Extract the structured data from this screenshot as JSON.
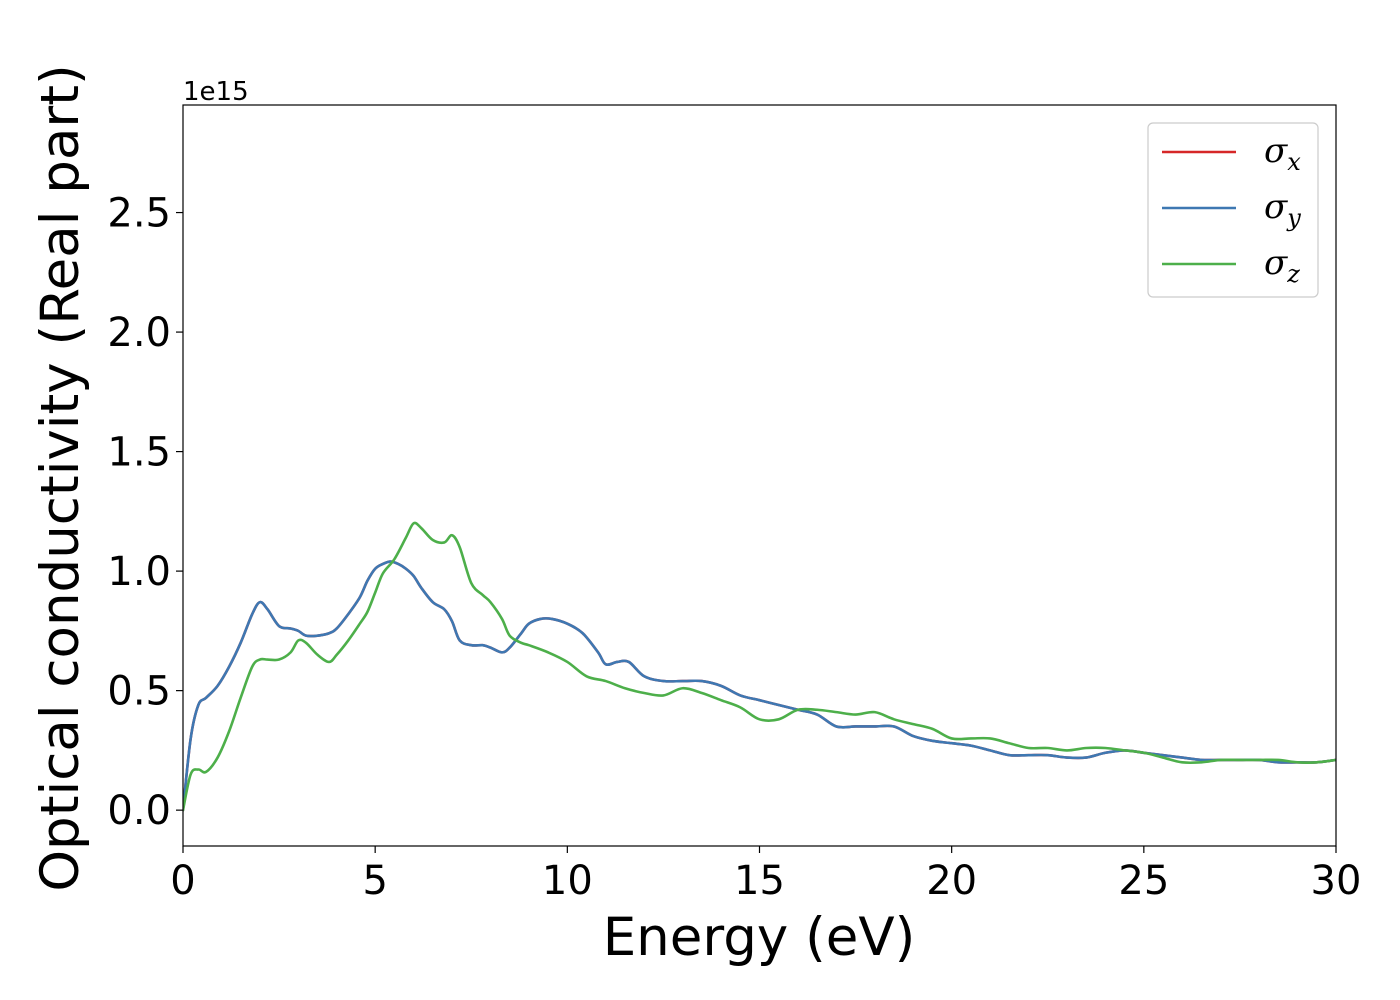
{
  "chart_data": {
    "type": "line",
    "title": "",
    "xlabel": "Energy (eV)",
    "ylabel": "Optical conductivity (Real part)",
    "y_offset_label": "1e15",
    "y_scale": 1000000000000000.0,
    "xlim": [
      0,
      30
    ],
    "ylim": [
      -0.15,
      2.95
    ],
    "x_ticks": [
      0,
      5,
      10,
      15,
      20,
      25,
      30
    ],
    "x_tick_labels": [
      "0",
      "5",
      "10",
      "15",
      "20",
      "25",
      "30"
    ],
    "y_ticks": [
      0.0,
      0.5,
      1.0,
      1.5,
      2.0,
      2.5
    ],
    "y_tick_labels": [
      "0.0",
      "0.5",
      "1.0",
      "1.5",
      "2.0",
      "2.5"
    ],
    "grid": false,
    "legend_position": "top-right",
    "series": [
      {
        "name": "σ_x",
        "legend_base": "σ",
        "legend_sub": "x",
        "color": "#d62728",
        "x": [
          0,
          0.2,
          0.4,
          0.6,
          0.9,
          1.2,
          1.5,
          1.8,
          2.0,
          2.2,
          2.5,
          2.8,
          3.0,
          3.2,
          3.5,
          3.8,
          4.0,
          4.3,
          4.6,
          4.8,
          5.0,
          5.2,
          5.4,
          5.6,
          5.8,
          6.0,
          6.2,
          6.5,
          6.8,
          7.0,
          7.2,
          7.5,
          7.8,
          8.0,
          8.3,
          8.5,
          8.8,
          9.0,
          9.3,
          9.6,
          10.0,
          10.4,
          10.8,
          11.0,
          11.3,
          11.6,
          12.0,
          12.5,
          13.0,
          13.5,
          14.0,
          14.5,
          15.0,
          15.5,
          16.0,
          16.5,
          17.0,
          17.5,
          18.0,
          18.5,
          19.0,
          19.5,
          20.0,
          20.5,
          21.0,
          21.5,
          22.0,
          22.5,
          23.0,
          23.5,
          24.0,
          24.5,
          25.0,
          25.5,
          26.0,
          26.5,
          27.0,
          27.5,
          28.0,
          28.5,
          29.0,
          29.5,
          30.0
        ],
        "y": [
          0.0,
          0.3,
          0.44,
          0.47,
          0.52,
          0.6,
          0.7,
          0.82,
          0.87,
          0.84,
          0.77,
          0.76,
          0.75,
          0.73,
          0.73,
          0.74,
          0.76,
          0.82,
          0.89,
          0.96,
          1.01,
          1.03,
          1.04,
          1.03,
          1.01,
          0.98,
          0.93,
          0.87,
          0.84,
          0.79,
          0.71,
          0.69,
          0.69,
          0.68,
          0.66,
          0.68,
          0.74,
          0.78,
          0.8,
          0.8,
          0.78,
          0.74,
          0.66,
          0.61,
          0.62,
          0.62,
          0.56,
          0.54,
          0.54,
          0.54,
          0.52,
          0.48,
          0.46,
          0.44,
          0.42,
          0.4,
          0.35,
          0.35,
          0.35,
          0.35,
          0.31,
          0.29,
          0.28,
          0.27,
          0.25,
          0.23,
          0.23,
          0.23,
          0.22,
          0.22,
          0.24,
          0.25,
          0.24,
          0.23,
          0.22,
          0.21,
          0.21,
          0.21,
          0.21,
          0.2,
          0.2,
          0.2,
          0.21
        ]
      },
      {
        "name": "σ_y",
        "legend_base": "σ",
        "legend_sub": "y",
        "color": "#3e78b2",
        "x": [
          0,
          0.2,
          0.4,
          0.6,
          0.9,
          1.2,
          1.5,
          1.8,
          2.0,
          2.2,
          2.5,
          2.8,
          3.0,
          3.2,
          3.5,
          3.8,
          4.0,
          4.3,
          4.6,
          4.8,
          5.0,
          5.2,
          5.4,
          5.6,
          5.8,
          6.0,
          6.2,
          6.5,
          6.8,
          7.0,
          7.2,
          7.5,
          7.8,
          8.0,
          8.3,
          8.5,
          8.8,
          9.0,
          9.3,
          9.6,
          10.0,
          10.4,
          10.8,
          11.0,
          11.3,
          11.6,
          12.0,
          12.5,
          13.0,
          13.5,
          14.0,
          14.5,
          15.0,
          15.5,
          16.0,
          16.5,
          17.0,
          17.5,
          18.0,
          18.5,
          19.0,
          19.5,
          20.0,
          20.5,
          21.0,
          21.5,
          22.0,
          22.5,
          23.0,
          23.5,
          24.0,
          24.5,
          25.0,
          25.5,
          26.0,
          26.5,
          27.0,
          27.5,
          28.0,
          28.5,
          29.0,
          29.5,
          30.0
        ],
        "y": [
          0.0,
          0.3,
          0.44,
          0.47,
          0.52,
          0.6,
          0.7,
          0.82,
          0.87,
          0.84,
          0.77,
          0.76,
          0.75,
          0.73,
          0.73,
          0.74,
          0.76,
          0.82,
          0.89,
          0.96,
          1.01,
          1.03,
          1.04,
          1.03,
          1.01,
          0.98,
          0.93,
          0.87,
          0.84,
          0.79,
          0.71,
          0.69,
          0.69,
          0.68,
          0.66,
          0.68,
          0.74,
          0.78,
          0.8,
          0.8,
          0.78,
          0.74,
          0.66,
          0.61,
          0.62,
          0.62,
          0.56,
          0.54,
          0.54,
          0.54,
          0.52,
          0.48,
          0.46,
          0.44,
          0.42,
          0.4,
          0.35,
          0.35,
          0.35,
          0.35,
          0.31,
          0.29,
          0.28,
          0.27,
          0.25,
          0.23,
          0.23,
          0.23,
          0.22,
          0.22,
          0.24,
          0.25,
          0.24,
          0.23,
          0.22,
          0.21,
          0.21,
          0.21,
          0.21,
          0.2,
          0.2,
          0.2,
          0.21
        ]
      },
      {
        "name": "σ_z",
        "legend_base": "σ",
        "legend_sub": "z",
        "color": "#4daf4a",
        "x": [
          0,
          0.2,
          0.4,
          0.6,
          0.9,
          1.2,
          1.5,
          1.8,
          2.0,
          2.2,
          2.5,
          2.8,
          3.0,
          3.2,
          3.5,
          3.8,
          4.0,
          4.3,
          4.6,
          4.8,
          5.0,
          5.2,
          5.5,
          5.8,
          6.0,
          6.2,
          6.5,
          6.8,
          7.0,
          7.2,
          7.5,
          7.8,
          8.0,
          8.3,
          8.5,
          8.8,
          9.0,
          9.5,
          10.0,
          10.5,
          11.0,
          11.5,
          12.0,
          12.5,
          13.0,
          13.5,
          14.0,
          14.5,
          15.0,
          15.5,
          16.0,
          16.5,
          17.0,
          17.5,
          18.0,
          18.5,
          19.0,
          19.5,
          20.0,
          20.5,
          21.0,
          21.5,
          22.0,
          22.5,
          23.0,
          23.5,
          24.0,
          24.5,
          25.0,
          25.5,
          26.0,
          26.5,
          27.0,
          27.5,
          28.0,
          28.5,
          29.0,
          29.5,
          30.0
        ],
        "y": [
          0.0,
          0.15,
          0.17,
          0.16,
          0.22,
          0.33,
          0.47,
          0.6,
          0.63,
          0.63,
          0.63,
          0.66,
          0.71,
          0.7,
          0.65,
          0.62,
          0.65,
          0.71,
          0.78,
          0.83,
          0.91,
          0.99,
          1.05,
          1.14,
          1.2,
          1.18,
          1.13,
          1.12,
          1.15,
          1.1,
          0.95,
          0.9,
          0.87,
          0.8,
          0.73,
          0.7,
          0.69,
          0.66,
          0.62,
          0.56,
          0.54,
          0.51,
          0.49,
          0.48,
          0.51,
          0.49,
          0.46,
          0.43,
          0.38,
          0.38,
          0.42,
          0.42,
          0.41,
          0.4,
          0.41,
          0.38,
          0.36,
          0.34,
          0.3,
          0.3,
          0.3,
          0.28,
          0.26,
          0.26,
          0.25,
          0.26,
          0.26,
          0.25,
          0.24,
          0.22,
          0.2,
          0.2,
          0.21,
          0.21,
          0.21,
          0.21,
          0.2,
          0.2,
          0.21
        ]
      }
    ]
  }
}
